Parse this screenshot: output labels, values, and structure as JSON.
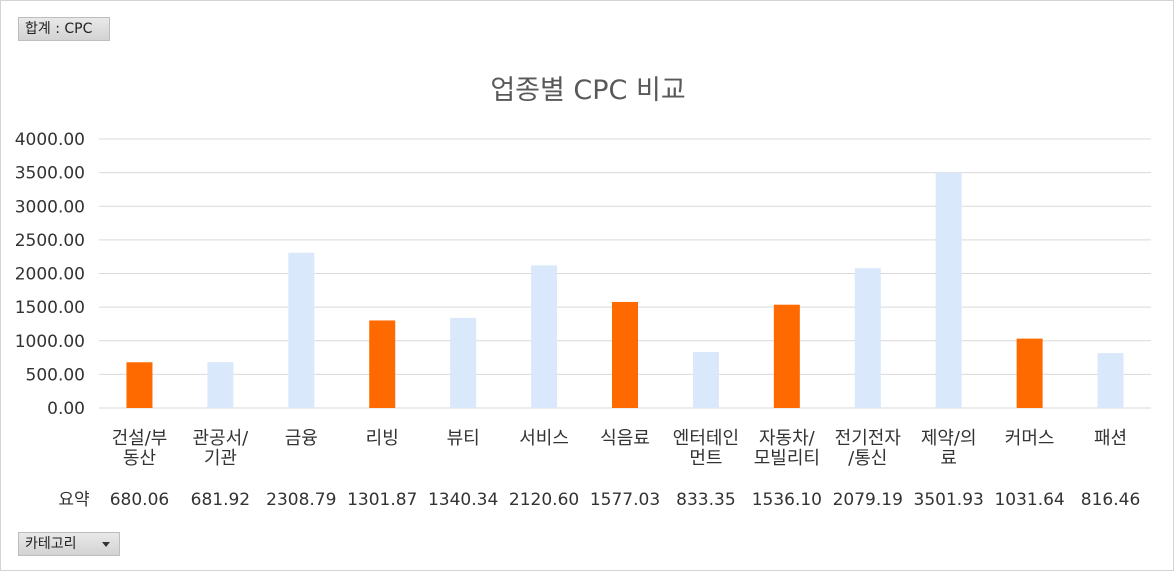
{
  "filter_button": {
    "label": "합계 : CPC"
  },
  "category_button": {
    "label": "카테고리"
  },
  "colors": {
    "highlight": "#ff6a00",
    "normal": "#dae8fc",
    "grid": "#d9d9d9",
    "text": "#333333",
    "title": "#595959"
  },
  "chart_data": {
    "type": "bar",
    "title": "업종별 CPC 비교",
    "xlabel": "",
    "ylabel": "",
    "ylim": [
      0,
      4000
    ],
    "yticks": [
      "0.00",
      "500.00",
      "1000.00",
      "1500.00",
      "2000.00",
      "2500.00",
      "3000.00",
      "3500.00",
      "4000.00"
    ],
    "grid": true,
    "legend": "none",
    "categories": [
      [
        "건설/부",
        "동산"
      ],
      [
        "관공서/",
        "기관"
      ],
      [
        "금융"
      ],
      [
        "리빙"
      ],
      [
        "뷰티"
      ],
      [
        "서비스"
      ],
      [
        "식음료"
      ],
      [
        "엔터테인",
        "먼트"
      ],
      [
        "자동차/",
        "모빌리티"
      ],
      [
        "전기전자",
        "/통신"
      ],
      [
        "제약/의",
        "료"
      ],
      [
        "커머스"
      ],
      [
        "패션"
      ]
    ],
    "values": [
      680.06,
      681.92,
      2308.79,
      1301.87,
      1340.34,
      2120.6,
      1577.03,
      833.35,
      1536.1,
      2079.19,
      3501.93,
      1031.64,
      816.46
    ],
    "highlighted": [
      true,
      false,
      false,
      true,
      false,
      false,
      true,
      false,
      true,
      false,
      false,
      true,
      false
    ],
    "table": {
      "row_label": "요약",
      "values": [
        "680.06",
        "681.92",
        "2308.79",
        "1301.87",
        "1340.34",
        "2120.60",
        "1577.03",
        "833.35",
        "1536.10",
        "2079.19",
        "3501.93",
        "1031.64",
        "816.46"
      ]
    }
  }
}
